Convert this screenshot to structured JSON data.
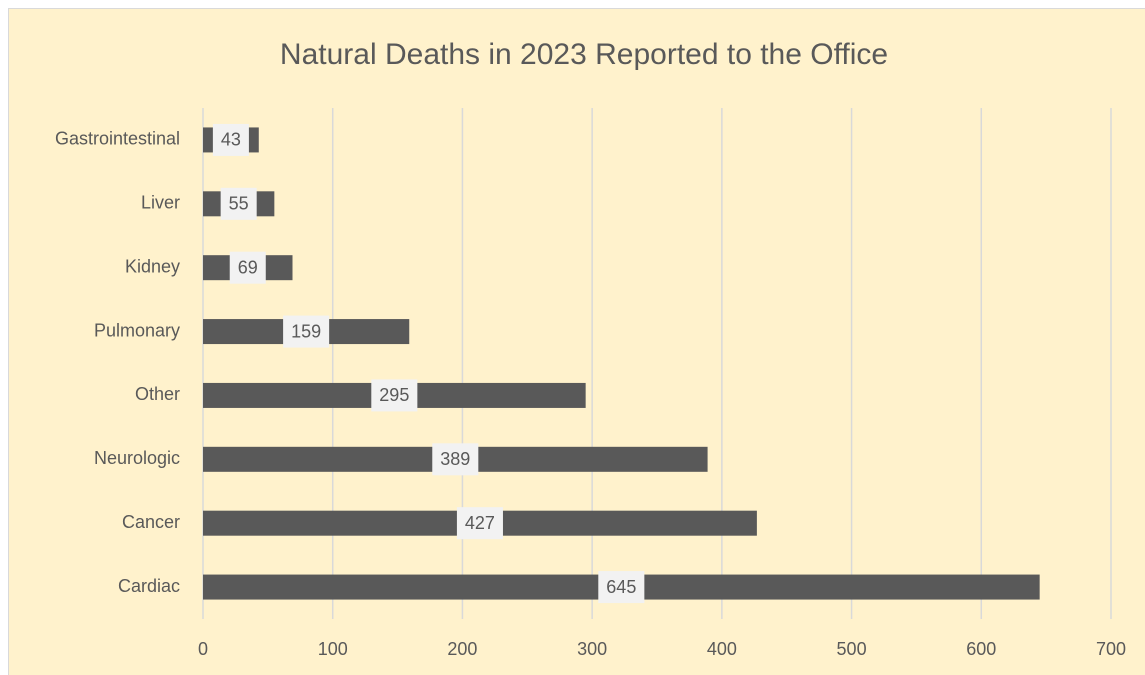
{
  "chart_data": {
    "type": "bar",
    "orientation": "horizontal",
    "title": "Natural Deaths in 2023 Reported to the Office",
    "categories": [
      "Gastrointestinal",
      "Liver",
      "Kidney",
      "Pulmonary",
      "Other",
      "Neurologic",
      "Cancer",
      "Cardiac"
    ],
    "values": [
      43,
      55,
      69,
      159,
      295,
      389,
      427,
      645
    ],
    "color": "#595959",
    "xlim": [
      0,
      700
    ],
    "xticks": [
      0,
      100,
      200,
      300,
      400,
      500,
      600,
      700
    ],
    "grid": true
  }
}
